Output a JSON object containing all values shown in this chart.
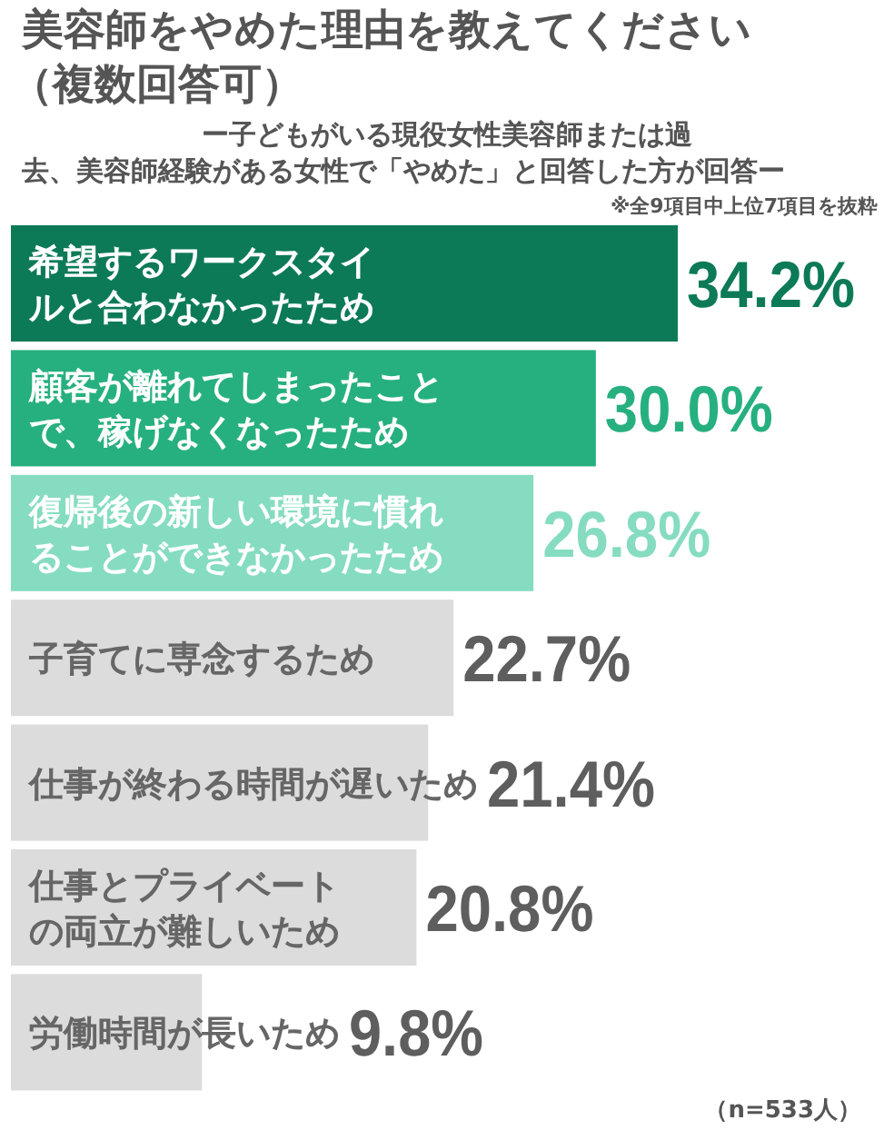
{
  "chart_data": {
    "type": "bar",
    "orientation": "horizontal",
    "title": "美容師をやめた理由を教えてください（複数回答可）",
    "subtitle": "ー子どもがいる現役女性美容師または過去、美容師経験がある女性で「やめた」と回答した方が回答ー",
    "categories": [
      "希望するワークスタイルと合わなかったため",
      "顧客が離れてしまったことで、稼げなくなったため",
      "復帰後の新しい環境に慣れることができなかったため",
      "子育てに専念するため",
      "仕事が終わる時間が遅いため",
      "仕事とプライベートの両立が難しいため",
      "労働時間が長いため"
    ],
    "values": [
      34.2,
      30.0,
      26.8,
      22.7,
      21.4,
      20.8,
      9.8
    ],
    "value_labels": [
      "34.2%",
      "30.0%",
      "26.8%",
      "22.7%",
      "21.4%",
      "20.8%",
      "9.8%"
    ],
    "colors": [
      "#0d7a57",
      "#27b07f",
      "#86dcc0",
      "#dcdcdc",
      "#dcdcdc",
      "#dcdcdc",
      "#dcdcdc"
    ],
    "annotations": [
      "※全9項目中上位7項目を抜粋",
      "（n=533人）"
    ]
  }
}
